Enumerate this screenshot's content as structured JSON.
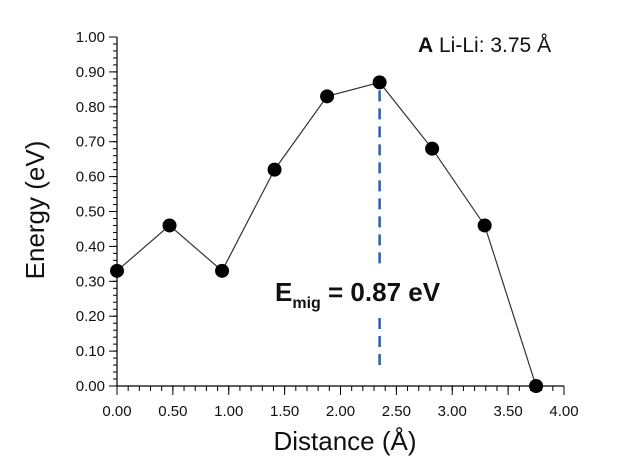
{
  "chart_data": {
    "type": "line",
    "title_letter": "A",
    "title_text": " Li-Li: 3.75 Å",
    "xlabel": "Distance (Å)",
    "ylabel": "Energy (eV)",
    "xlim": [
      0,
      4
    ],
    "ylim": [
      0,
      1
    ],
    "xticks": [
      "0.00",
      "0.50",
      "1.00",
      "1.50",
      "2.00",
      "2.50",
      "3.00",
      "3.50",
      "4.00"
    ],
    "yticks": [
      "0.00",
      "0.10",
      "0.20",
      "0.30",
      "0.40",
      "0.50",
      "0.60",
      "0.70",
      "0.80",
      "0.90",
      "1.00"
    ],
    "x": [
      0.0,
      0.47,
      0.94,
      1.41,
      1.88,
      2.35,
      2.82,
      3.29,
      3.75
    ],
    "y": [
      0.33,
      0.46,
      0.33,
      0.62,
      0.83,
      0.87,
      0.68,
      0.46,
      0.0
    ],
    "line_color": "#333333",
    "marker_color": "#000000",
    "barrier_line": {
      "x": 2.35,
      "y": 0.87,
      "color": "#2e5fa3",
      "style": "dashed"
    },
    "annotation": {
      "main": "E",
      "subscript": "mig",
      "value": " = 0.87 eV"
    },
    "grid": false
  }
}
